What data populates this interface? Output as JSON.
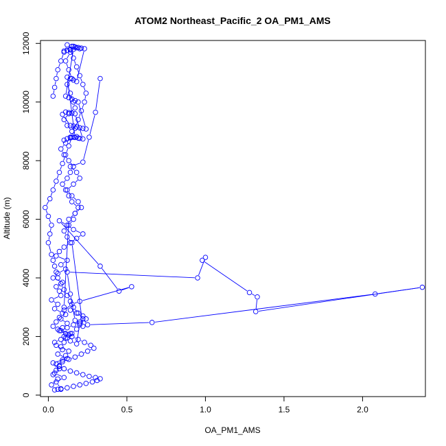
{
  "chart_data": {
    "type": "scatter",
    "title": "ATOM2 Northeast_Pacific_2 OA_PM1_AMS",
    "xlabel": "OA_PM1_AMS",
    "ylabel": "Altitude (m)",
    "xlim": [
      -0.05,
      2.4
    ],
    "ylim": [
      -50,
      12100
    ],
    "xticks": [
      0,
      0.5,
      1,
      1.5,
      2
    ],
    "xtick_labels": [
      "0.0",
      "0.5",
      "1.0",
      "1.5",
      "2.0"
    ],
    "yticks": [
      0,
      2000,
      4000,
      6000,
      8000,
      10000,
      12000
    ],
    "ytick_labels": [
      "0",
      "2000",
      "4000",
      "6000",
      "8000",
      "10000",
      "12000"
    ],
    "grid": false,
    "series_color": "#0000ff",
    "series": [
      {
        "x": [
          0.06,
          0.08,
          0.05,
          0.1,
          0.04,
          0.07,
          0.03,
          0.12,
          0.06,
          0.09,
          0.05,
          0.04,
          0.08,
          0.1,
          0.14,
          0.06,
          0.03,
          0.05,
          0.07,
          0.09,
          0.04,
          0.06,
          0.02,
          0.08,
          0.07,
          0.05,
          0.09,
          0.03,
          0.06,
          0.11,
          0.08,
          0.12,
          0.05,
          0.07,
          0.1,
          0.14,
          0.18,
          0.22,
          0.16,
          0.12,
          0.07,
          0.33,
          0.45,
          0.53,
          0.2,
          0.15,
          0.1,
          0.11,
          0.08,
          0.12,
          0.09,
          0.07,
          0.13,
          0.11,
          0.14,
          0.18,
          0.2,
          0.22,
          0.15,
          0.12,
          0.1,
          0.13,
          0.16,
          0.17,
          0.19,
          0.15,
          0.13,
          0.11,
          0.09,
          0.12,
          0.14,
          0.16,
          0.13,
          0.1,
          0.08,
          0.11,
          0.14,
          0.15,
          0.12,
          0.1,
          0.13,
          0.17,
          0.16,
          0.14,
          0.12,
          0.15,
          0.13,
          0.11,
          0.14,
          0.16
        ],
        "y": [
          200,
          220,
          450,
          600,
          750,
          900,
          1100,
          1250,
          1400,
          1550,
          1700,
          1800,
          1900,
          2000,
          2100,
          2250,
          2350,
          2500,
          2650,
          2800,
          2950,
          3100,
          3250,
          3400,
          3550,
          3700,
          3850,
          4000,
          4150,
          4300,
          4450,
          4600,
          4750,
          4900,
          5050,
          5200,
          5350,
          5500,
          5650,
          5800,
          5950,
          4400,
          3550,
          3700,
          3200,
          3100,
          2900,
          2750,
          2600,
          2450,
          2300,
          2200,
          2050,
          1950,
          1850,
          1750,
          2450,
          2350,
          5200,
          5400,
          5600,
          5800,
          6000,
          6200,
          6400,
          6600,
          6800,
          7000,
          7200,
          7400,
          7600,
          7800,
          8000,
          8200,
          8400,
          8600,
          8800,
          9000,
          9200,
          9400,
          9600,
          9800,
          10000,
          10300,
          10600,
          10800,
          11100,
          11400,
          11700,
          11900
        ]
      },
      {
        "x": [
          0.04,
          0.02,
          0.06,
          0.03,
          0.05,
          0.07,
          0.09,
          0.11,
          0.13,
          0.08,
          0.1,
          0.12,
          0.15,
          0.18,
          0.2,
          0.17,
          0.14,
          0.12,
          0.95,
          1.0,
          0.98,
          1.28,
          1.33,
          1.32,
          2.38,
          2.08,
          0.66,
          0.25,
          0.22,
          0.19,
          0.16,
          0.14,
          0.12,
          0.1,
          0.08,
          0.06,
          0.05,
          0.04,
          0.03,
          0.02,
          0.0,
          0.01,
          0.02,
          0.0,
          -0.02,
          0.01,
          0.03,
          0.05,
          0.07,
          0.09,
          0.11,
          0.13,
          0.15,
          0.17,
          0.19,
          0.21,
          0.23,
          0.24,
          0.22,
          0.2,
          0.18,
          0.16,
          0.14,
          0.12,
          0.1,
          0.08,
          0.06,
          0.05,
          0.04,
          0.03
        ],
        "y": [
          180,
          350,
          550,
          700,
          850,
          1000,
          1200,
          1350,
          1500,
          1650,
          1800,
          1950,
          2100,
          2250,
          2400,
          2550,
          3450,
          4200,
          4000,
          4700,
          4600,
          3500,
          3350,
          2850,
          3680,
          3450,
          2480,
          2400,
          2600,
          2800,
          3000,
          3200,
          3400,
          3600,
          3800,
          4000,
          4200,
          4400,
          4600,
          4800,
          5200,
          5500,
          5800,
          6100,
          6400,
          6700,
          7000,
          7300,
          7600,
          7900,
          8200,
          8500,
          8800,
          9100,
          9400,
          9700,
          10000,
          10300,
          10600,
          10900,
          11200,
          11500,
          11800,
          11950,
          11700,
          11400,
          11100,
          10800,
          10500,
          10200
        ]
      },
      {
        "x": [
          0.08,
          0.12,
          0.16,
          0.2,
          0.24,
          0.28,
          0.31,
          0.33,
          0.3,
          0.26,
          0.22,
          0.18,
          0.14,
          0.1,
          0.07,
          0.05,
          0.09,
          0.13,
          0.17,
          0.21,
          0.25,
          0.29,
          0.27,
          0.23,
          0.19,
          0.15,
          0.11,
          0.08,
          0.12,
          0.16,
          0.2,
          0.24,
          0.22,
          0.18,
          0.14,
          0.1,
          0.13,
          0.17,
          0.21,
          0.19,
          0.15,
          0.12,
          0.16,
          0.2,
          0.18,
          0.14,
          0.22,
          0.26,
          0.3,
          0.33
        ],
        "y": [
          200,
          250,
          300,
          350,
          400,
          450,
          500,
          560,
          600,
          640,
          700,
          760,
          820,
          900,
          980,
          1060,
          1140,
          1220,
          1300,
          1400,
          1500,
          1600,
          1700,
          1800,
          1900,
          2000,
          2100,
          2200,
          2300,
          2400,
          2500,
          2600,
          2700,
          2800,
          2900,
          3000,
          6000,
          6200,
          6400,
          6600,
          6800,
          7000,
          7200,
          7400,
          7600,
          7800,
          7950,
          8800,
          9650,
          10800
        ]
      },
      {
        "x": [
          0.1,
          0.12,
          0.14,
          0.16,
          0.18,
          0.2,
          0.22,
          0.17,
          0.15,
          0.13,
          0.11,
          0.09,
          0.14,
          0.16,
          0.18,
          0.2,
          0.22,
          0.24,
          0.19,
          0.17,
          0.15,
          0.13,
          0.11,
          0.16,
          0.18,
          0.2,
          0.14,
          0.12,
          0.1,
          0.15,
          0.17,
          0.19,
          0.21,
          0.23,
          0.18,
          0.16,
          0.14,
          0.12,
          0.17,
          0.19
        ],
        "y": [
          8700,
          8750,
          8780,
          8800,
          8820,
          8760,
          8740,
          9600,
          9620,
          9640,
          9660,
          9580,
          9200,
          9180,
          9150,
          9120,
          9100,
          9080,
          10000,
          10050,
          10100,
          10150,
          10200,
          11800,
          11850,
          11820,
          11780,
          11760,
          11740,
          11900,
          11880,
          11860,
          11840,
          11820,
          10700,
          10750,
          10800,
          10850,
          8790,
          8770
        ]
      }
    ]
  }
}
